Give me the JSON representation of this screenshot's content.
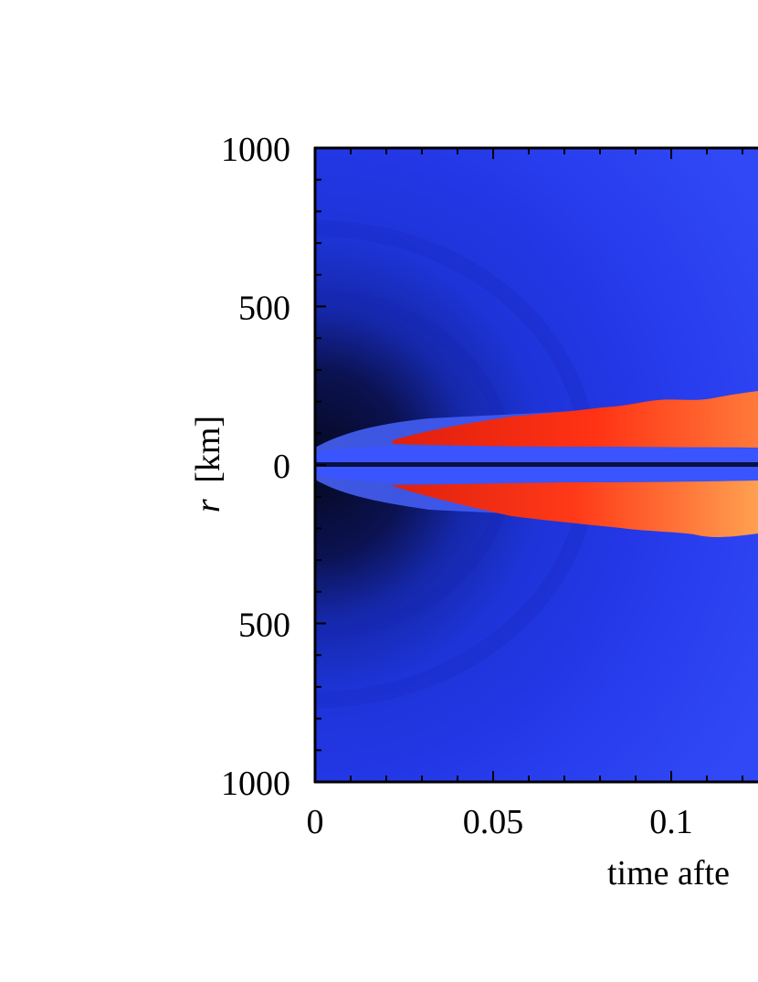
{
  "chart_data": {
    "type": "heatmap",
    "xlabel": "time afte",
    "ylabel_var": "r",
    "ylabel_unit": "[km]",
    "xlim": [
      0,
      0.125
    ],
    "ylim": [
      -1000,
      1000
    ],
    "x_ticks": [
      {
        "value": 0,
        "label": "0"
      },
      {
        "value": 0.05,
        "label": "0.05"
      },
      {
        "value": 0.1,
        "label": "0.1"
      }
    ],
    "y_ticks": [
      {
        "value": 1000,
        "label": "1000"
      },
      {
        "value": 500,
        "label": "500"
      },
      {
        "value": 0,
        "label": "0"
      },
      {
        "value": -500,
        "label": "500"
      },
      {
        "value": -1000,
        "label": "1000"
      }
    ],
    "colors": {
      "background_dark": "#050a2a",
      "field_blue": "#2438ee",
      "field_blue_light": "#3b52ff",
      "hot_red": "#ff2a10",
      "hot_orange": "#ff8a40",
      "center_line": "#0a1040"
    }
  }
}
